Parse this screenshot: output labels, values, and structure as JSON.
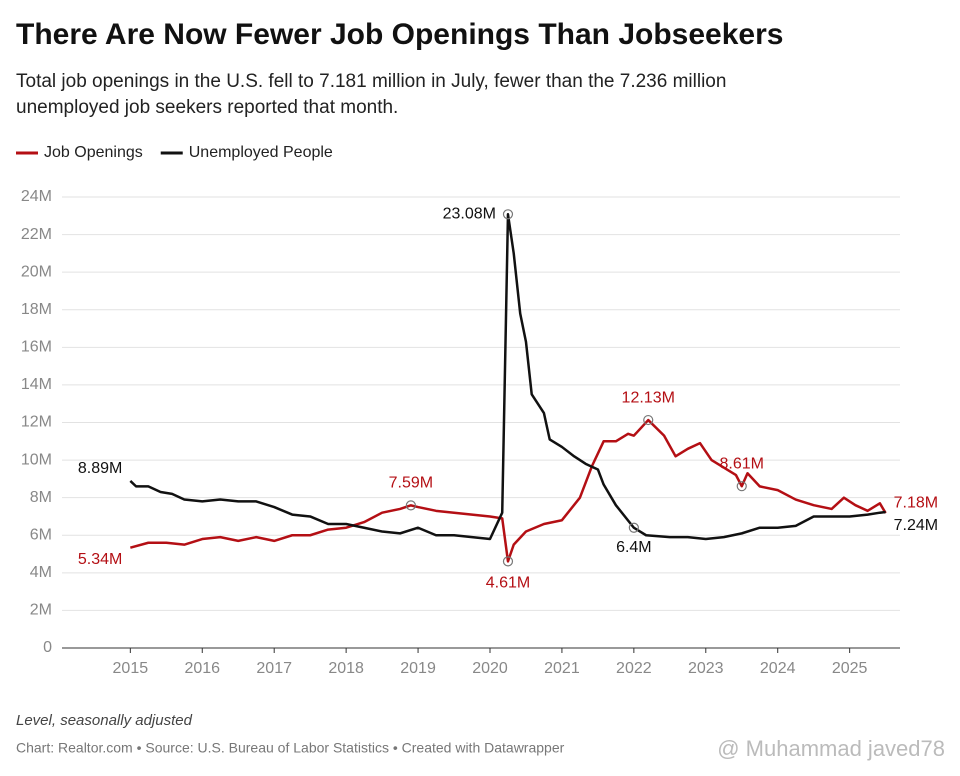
{
  "chart_data": {
    "type": "line",
    "title": "There Are Now Fewer Job Openings Than Jobseekers",
    "subtitle": [
      "Total job openings in the U.S. fell to 7.181 million in July, fewer than the 7.236 million",
      "unemployed job seekers reported that month."
    ],
    "note": "Level, seasonally adjusted",
    "source": "Chart: Realtor.com • Source: U.S. Bureau of Labor Statistics • Created with Datawrapper",
    "watermark": "@ Muhammad javed78",
    "xlim": [
      2014.05,
      2025.7
    ],
    "xticks": [
      2015,
      2016,
      2017,
      2018,
      2019,
      2020,
      2021,
      2022,
      2023,
      2024,
      2025
    ],
    "ylim": [
      0,
      24
    ],
    "yticks": [
      0,
      {
        "value": 2,
        "label": "2M"
      },
      {
        "value": 4,
        "label": "4M"
      },
      {
        "value": 6,
        "label": "6M"
      },
      {
        "value": 8,
        "label": "8M"
      },
      {
        "value": 10,
        "label": "10M"
      },
      {
        "value": 12,
        "label": "12M"
      },
      {
        "value": 14,
        "label": "14M"
      },
      {
        "value": 16,
        "label": "16M"
      },
      {
        "value": 18,
        "label": "18M"
      },
      {
        "value": 20,
        "label": "20M"
      },
      {
        "value": 22,
        "label": "22M"
      },
      {
        "value": 24,
        "label": "24M"
      }
    ],
    "grid": true,
    "series": [
      {
        "name": "Job Openings",
        "color": "#b40f14",
        "x": [
          2015,
          2015.25,
          2015.5,
          2015.75,
          2016,
          2016.25,
          2016.5,
          2016.75,
          2017,
          2017.25,
          2017.5,
          2017.75,
          2018,
          2018.25,
          2018.5,
          2018.75,
          2018.9,
          2019,
          2019.25,
          2019.5,
          2019.75,
          2020,
          2020.17,
          2020.25,
          2020.33,
          2020.5,
          2020.75,
          2021,
          2021.25,
          2021.42,
          2021.58,
          2021.75,
          2021.92,
          2022,
          2022.2,
          2022.42,
          2022.58,
          2022.75,
          2022.92,
          2023.08,
          2023.25,
          2023.42,
          2023.5,
          2023.58,
          2023.75,
          2024,
          2024.25,
          2024.5,
          2024.75,
          2024.92,
          2025.08,
          2025.25,
          2025.42,
          2025.5
        ],
        "values": [
          5.34,
          5.6,
          5.6,
          5.5,
          5.8,
          5.9,
          5.7,
          5.9,
          5.7,
          6.0,
          6.0,
          6.3,
          6.4,
          6.7,
          7.2,
          7.4,
          7.59,
          7.5,
          7.3,
          7.2,
          7.1,
          7.0,
          6.9,
          4.61,
          5.5,
          6.2,
          6.6,
          6.8,
          8.0,
          9.7,
          11.0,
          11.0,
          11.4,
          11.3,
          12.13,
          11.3,
          10.2,
          10.6,
          10.9,
          10.0,
          9.6,
          9.2,
          8.61,
          9.3,
          8.6,
          8.4,
          7.9,
          7.6,
          7.4,
          8.0,
          7.6,
          7.3,
          7.7,
          7.181
        ]
      },
      {
        "name": "Unemployed People",
        "color": "#111111",
        "x": [
          2015,
          2015.08,
          2015.25,
          2015.42,
          2015.58,
          2015.75,
          2016,
          2016.25,
          2016.5,
          2016.75,
          2017,
          2017.25,
          2017.5,
          2017.75,
          2018,
          2018.25,
          2018.5,
          2018.75,
          2019,
          2019.25,
          2019.5,
          2019.75,
          2020,
          2020.17,
          2020.25,
          2020.33,
          2020.42,
          2020.5,
          2020.58,
          2020.75,
          2020.83,
          2021,
          2021.17,
          2021.33,
          2021.5,
          2021.58,
          2021.75,
          2022,
          2022.17,
          2022.5,
          2022.75,
          2023,
          2023.25,
          2023.5,
          2023.75,
          2024,
          2024.25,
          2024.5,
          2024.75,
          2025,
          2025.25,
          2025.42,
          2025.5
        ],
        "values": [
          8.89,
          8.6,
          8.6,
          8.3,
          8.2,
          7.9,
          7.8,
          7.9,
          7.8,
          7.8,
          7.5,
          7.1,
          7.0,
          6.6,
          6.6,
          6.4,
          6.2,
          6.1,
          6.4,
          6.0,
          6.0,
          5.9,
          5.8,
          7.2,
          23.08,
          21.0,
          17.8,
          16.3,
          13.5,
          12.5,
          11.1,
          10.7,
          10.2,
          9.8,
          9.5,
          8.7,
          7.6,
          6.4,
          6.0,
          5.9,
          5.9,
          5.8,
          5.9,
          6.1,
          6.4,
          6.4,
          6.5,
          7.0,
          7.0,
          7.0,
          7.1,
          7.2,
          7.236
        ]
      }
    ],
    "annotations": [
      {
        "label": "8.89M",
        "x": 2015,
        "y": 8.89,
        "color": "#111111"
      },
      {
        "label": "5.34M",
        "x": 2015,
        "y": 5.34,
        "color": "#b40f14"
      },
      {
        "label": "7.59M",
        "x": 2018.9,
        "y": 7.59,
        "color": "#b40f14"
      },
      {
        "label": "23.08M",
        "x": 2020.25,
        "y": 23.08,
        "color": "#111111"
      },
      {
        "label": "4.61M",
        "x": 2020.25,
        "y": 4.61,
        "color": "#b40f14"
      },
      {
        "label": "12.13M",
        "x": 2022.2,
        "y": 12.13,
        "color": "#b40f14"
      },
      {
        "label": "6.4M",
        "x": 2022,
        "y": 6.4,
        "color": "#111111"
      },
      {
        "label": "8.61M",
        "x": 2023.5,
        "y": 8.61,
        "color": "#b40f14"
      },
      {
        "label": "7.18M",
        "x": 2025.5,
        "y": 7.18,
        "color": "#b40f14"
      },
      {
        "label": "7.24M",
        "x": 2025.5,
        "y": 7.24,
        "color": "#111111"
      }
    ]
  }
}
